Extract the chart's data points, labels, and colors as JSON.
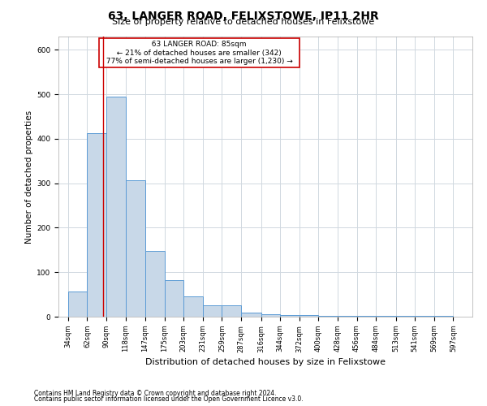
{
  "title": "63, LANGER ROAD, FELIXSTOWE, IP11 2HR",
  "subtitle": "Size of property relative to detached houses in Felixstowe",
  "xlabel": "Distribution of detached houses by size in Felixstowe",
  "ylabel": "Number of detached properties",
  "footnote1": "Contains HM Land Registry data © Crown copyright and database right 2024.",
  "footnote2": "Contains public sector information licensed under the Open Government Licence v3.0.",
  "annotation_title": "63 LANGER ROAD: 85sqm",
  "annotation_line1": "← 21% of detached houses are smaller (342)",
  "annotation_line2": "77% of semi-detached houses are larger (1,230) →",
  "bar_left_edges": [
    34,
    62,
    90,
    118,
    147,
    175,
    203,
    231,
    259,
    287,
    316,
    344,
    372,
    400,
    428,
    456,
    484,
    513,
    541,
    569
  ],
  "bar_widths": [
    28,
    28,
    28,
    29,
    28,
    28,
    28,
    28,
    28,
    29,
    28,
    28,
    28,
    28,
    28,
    28,
    29,
    28,
    28,
    28
  ],
  "bar_heights": [
    57,
    412,
    494,
    306,
    148,
    82,
    45,
    25,
    25,
    10,
    6,
    4,
    3,
    2,
    1,
    1,
    1,
    1,
    1,
    1
  ],
  "tick_labels": [
    "34sqm",
    "62sqm",
    "90sqm",
    "118sqm",
    "147sqm",
    "175sqm",
    "203sqm",
    "231sqm",
    "259sqm",
    "287sqm",
    "316sqm",
    "344sqm",
    "372sqm",
    "400sqm",
    "428sqm",
    "456sqm",
    "484sqm",
    "513sqm",
    "541sqm",
    "569sqm",
    "597sqm"
  ],
  "bar_facecolor": "#c8d8e8",
  "bar_edgecolor": "#5b9bd5",
  "vline_color": "#cc0000",
  "vline_x": 85,
  "annotation_box_color": "#cc0000",
  "background_color": "#ffffff",
  "grid_color": "#d0d8e0",
  "ylim": [
    0,
    630
  ],
  "xlim": [
    20,
    625
  ],
  "title_fontsize": 10,
  "subtitle_fontsize": 8,
  "ylabel_fontsize": 7.5,
  "xlabel_fontsize": 8,
  "tick_fontsize": 6,
  "annotation_fontsize": 6.5,
  "footnote_fontsize": 5.5
}
